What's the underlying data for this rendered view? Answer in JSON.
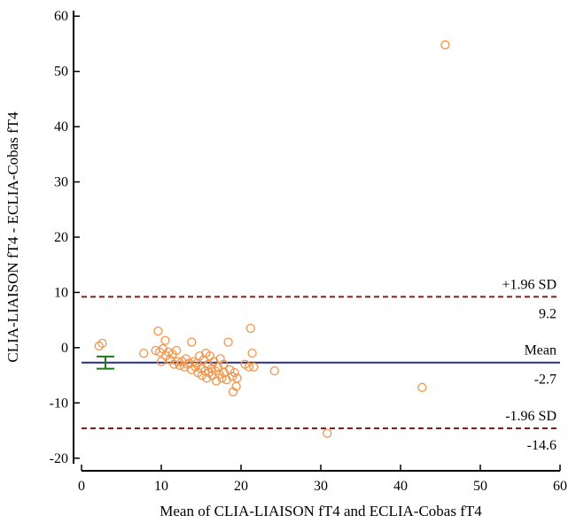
{
  "chart_data": {
    "type": "scatter",
    "title": "",
    "xlabel": "Mean of CLIA-LIAISON  fT4 and ECLIA-Cobas  fT4",
    "ylabel": "CLIA-LIAISON  fT4 - ECLIA-Cobas  fT4",
    "xlim": [
      0,
      60
    ],
    "ylim": [
      -21,
      61
    ],
    "xticks": [
      0,
      10,
      20,
      30,
      40,
      50,
      60
    ],
    "yticks": [
      -20,
      -10,
      0,
      10,
      20,
      30,
      40,
      50,
      60
    ],
    "grid": false,
    "reference_lines": [
      {
        "name": "upper-loa",
        "label": "+1.96 SD",
        "value_label": "9.2",
        "value": 9.2,
        "color": "#8b1a1a",
        "style": "dashed"
      },
      {
        "name": "mean",
        "label": "Mean",
        "value_label": "-2.7",
        "value": -2.7,
        "color": "#2b2b8c",
        "style": "solid"
      },
      {
        "name": "lower-loa",
        "label": "-1.96 SD",
        "value_label": "-14.6",
        "value": -14.6,
        "color": "#8b1a1a",
        "style": "dashed"
      }
    ],
    "mean_ci": {
      "x": 3,
      "low": -3.8,
      "high": -1.6,
      "color": "#1a7a1a"
    },
    "marker_color": "#f0954a",
    "points": [
      [
        2.2,
        0.3
      ],
      [
        2.6,
        0.8
      ],
      [
        7.8,
        -1.0
      ],
      [
        9.3,
        -0.5
      ],
      [
        9.6,
        3.0
      ],
      [
        9.8,
        -0.8
      ],
      [
        10.0,
        -2.5
      ],
      [
        10.2,
        -0.2
      ],
      [
        10.5,
        1.3
      ],
      [
        10.6,
        -1.5
      ],
      [
        10.9,
        -0.8
      ],
      [
        11.1,
        -2.2
      ],
      [
        11.4,
        -1.2
      ],
      [
        11.6,
        -3.0
      ],
      [
        11.9,
        -0.5
      ],
      [
        12.0,
        -2.5
      ],
      [
        12.3,
        -3.2
      ],
      [
        12.6,
        -2.5
      ],
      [
        12.9,
        -3.5
      ],
      [
        13.1,
        -2.0
      ],
      [
        13.3,
        -3.0
      ],
      [
        13.5,
        -2.8
      ],
      [
        13.8,
        1.0
      ],
      [
        13.8,
        -4.0
      ],
      [
        14.1,
        -2.5
      ],
      [
        14.3,
        -3.5
      ],
      [
        14.5,
        -2.8
      ],
      [
        14.6,
        -4.5
      ],
      [
        14.8,
        -1.5
      ],
      [
        15.0,
        -3.8
      ],
      [
        15.1,
        -5.0
      ],
      [
        15.3,
        -2.2
      ],
      [
        15.5,
        -4.2
      ],
      [
        15.6,
        -1.0
      ],
      [
        15.7,
        -5.5
      ],
      [
        15.9,
        -3.0
      ],
      [
        16.0,
        -4.5
      ],
      [
        16.1,
        -1.5
      ],
      [
        16.3,
        -3.8
      ],
      [
        16.4,
        -5.0
      ],
      [
        16.6,
        -2.5
      ],
      [
        16.8,
        -4.2
      ],
      [
        16.9,
        -6.0
      ],
      [
        17.1,
        -3.5
      ],
      [
        17.3,
        -4.8
      ],
      [
        17.4,
        -2.0
      ],
      [
        17.6,
        -5.5
      ],
      [
        17.8,
        -3.0
      ],
      [
        17.9,
        -4.5
      ],
      [
        18.2,
        -5.8
      ],
      [
        18.4,
        1.0
      ],
      [
        18.6,
        -4.0
      ],
      [
        18.9,
        -5.2
      ],
      [
        19.0,
        -8.0
      ],
      [
        19.2,
        -4.5
      ],
      [
        19.4,
        -7.0
      ],
      [
        19.5,
        -5.5
      ],
      [
        20.5,
        -3.0
      ],
      [
        21.0,
        -3.5
      ],
      [
        21.2,
        3.5
      ],
      [
        21.4,
        -1.0
      ],
      [
        21.6,
        -3.5
      ],
      [
        24.2,
        -4.2
      ],
      [
        30.8,
        -15.5
      ],
      [
        42.7,
        -7.2
      ],
      [
        45.6,
        54.8
      ]
    ]
  }
}
